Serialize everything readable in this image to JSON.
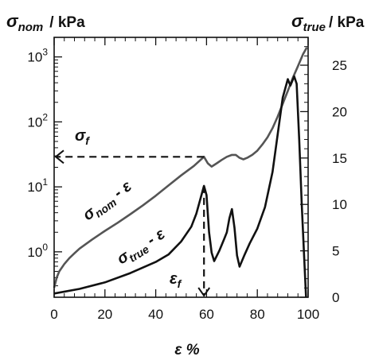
{
  "chart_data": {
    "type": "line",
    "x_axis": {
      "label": "ε %",
      "range": [
        0,
        100
      ],
      "ticks": [
        "0",
        "20",
        "40",
        "60",
        "80",
        "100"
      ]
    },
    "y_left_axis": {
      "label_symbol": "σ",
      "label_sub": "nom",
      "label_unit": "/ kPa",
      "scale": "log",
      "range": [
        0.2,
        2000
      ],
      "ticks": [
        {
          "base": "10",
          "exp": "0"
        },
        {
          "base": "10",
          "exp": "1"
        },
        {
          "base": "10",
          "exp": "2"
        },
        {
          "base": "10",
          "exp": "3"
        }
      ]
    },
    "y_right_axis": {
      "label_symbol": "σ",
      "label_sub": "true",
      "label_unit": "/ kPa",
      "scale": "linear",
      "range": [
        0,
        28
      ],
      "ticks": [
        "0",
        "5",
        "10",
        "15",
        "20",
        "25"
      ]
    },
    "series": [
      {
        "label_symbol": "σ",
        "label_sub": "nom",
        "label_suffix": "- ε",
        "axis": "left",
        "color": "#555555",
        "points": [
          [
            0,
            0.28
          ],
          [
            1,
            0.4
          ],
          [
            2,
            0.5
          ],
          [
            4,
            0.65
          ],
          [
            6,
            0.8
          ],
          [
            8,
            0.95
          ],
          [
            10,
            1.12
          ],
          [
            15,
            1.55
          ],
          [
            20,
            2.1
          ],
          [
            25,
            2.8
          ],
          [
            30,
            3.8
          ],
          [
            35,
            5.2
          ],
          [
            40,
            7.3
          ],
          [
            45,
            10.5
          ],
          [
            50,
            15
          ],
          [
            55,
            21
          ],
          [
            59,
            29
          ],
          [
            60.5,
            23
          ],
          [
            62,
            20.5
          ],
          [
            64,
            23
          ],
          [
            66,
            26
          ],
          [
            68,
            29
          ],
          [
            70,
            31
          ],
          [
            71.5,
            31
          ],
          [
            73,
            28
          ],
          [
            74.5,
            26.5
          ],
          [
            76,
            28
          ],
          [
            78,
            31
          ],
          [
            80,
            36
          ],
          [
            82,
            45
          ],
          [
            84,
            58
          ],
          [
            86,
            80
          ],
          [
            88,
            120
          ],
          [
            90,
            190
          ],
          [
            92,
            300
          ],
          [
            94,
            480
          ],
          [
            96,
            720
          ],
          [
            98,
            1100
          ],
          [
            99.5,
            1400
          ]
        ]
      },
      {
        "label_symbol": "σ",
        "label_sub": "true",
        "label_suffix": "- ε",
        "axis": "right",
        "color": "#111111",
        "points": [
          [
            0,
            0.4
          ],
          [
            10,
            0.9
          ],
          [
            20,
            1.6
          ],
          [
            30,
            2.6
          ],
          [
            40,
            3.8
          ],
          [
            45,
            4.6
          ],
          [
            50,
            6.0
          ],
          [
            54,
            7.6
          ],
          [
            56,
            9.0
          ],
          [
            58,
            11.0
          ],
          [
            59,
            12.0
          ],
          [
            60,
            11.0
          ],
          [
            61,
            7.0
          ],
          [
            62,
            4.8
          ],
          [
            63,
            3.9
          ],
          [
            65,
            5.0
          ],
          [
            67,
            6.3
          ],
          [
            68,
            7.0
          ],
          [
            69,
            8.5
          ],
          [
            70,
            9.5
          ],
          [
            71,
            7.5
          ],
          [
            72,
            4.5
          ],
          [
            73,
            3.3
          ],
          [
            75,
            4.6
          ],
          [
            77,
            5.8
          ],
          [
            80,
            7.4
          ],
          [
            83,
            9.7
          ],
          [
            86,
            13.5
          ],
          [
            88,
            17.5
          ],
          [
            90,
            21.5
          ],
          [
            92,
            23.5
          ],
          [
            93,
            22.8
          ],
          [
            94.5,
            23.8
          ],
          [
            95.5,
            23.0
          ],
          [
            96.5,
            17
          ],
          [
            97.5,
            10
          ],
          [
            98.5,
            4
          ],
          [
            99.2,
            0
          ]
        ]
      }
    ],
    "annotations": {
      "sigma_f": {
        "symbol": "σ",
        "sub": "f",
        "value_kpa": 29
      },
      "epsilon_f": {
        "symbol": "ε",
        "sub": "f",
        "value_percent": 59
      }
    },
    "grid": false
  }
}
